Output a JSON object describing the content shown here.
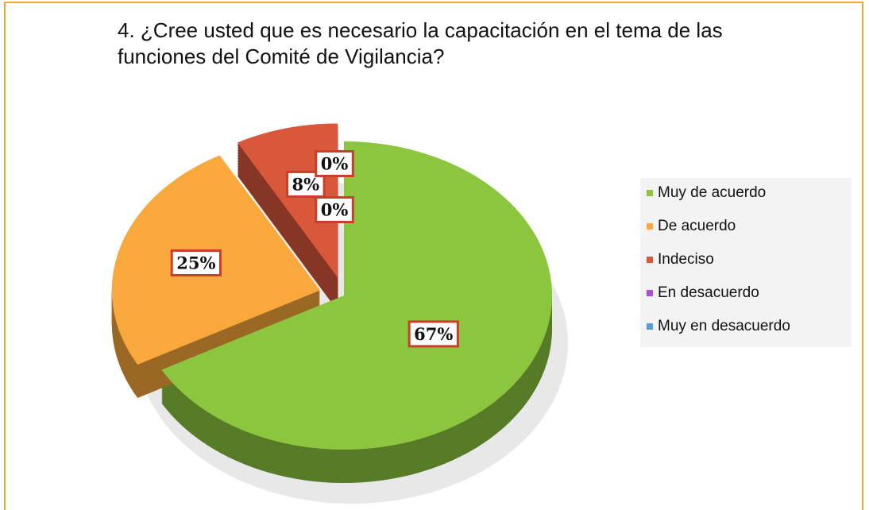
{
  "chart_data": {
    "type": "pie",
    "title": "4. ¿Cree usted que es necesario la capacitación en el tema de las funciones del Comité de Vigilancia?",
    "categories": [
      "Muy de acuerdo",
      "De acuerdo",
      "Indeciso",
      "En desacuerdo",
      "Muy en desacuerdo"
    ],
    "values": [
      67,
      25,
      8,
      0,
      0
    ],
    "value_labels": [
      "67%",
      "25%",
      "8%",
      "0%",
      "0%"
    ],
    "colors": [
      "#8cc63f",
      "#f9a83c",
      "#d9573b",
      "#b04fd6",
      "#5b9bd5"
    ],
    "legend": "right"
  }
}
